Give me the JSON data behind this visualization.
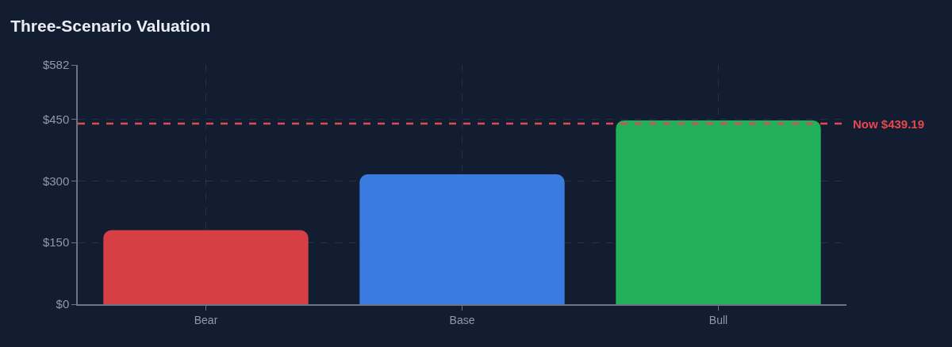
{
  "chart_data": {
    "type": "bar",
    "title": "Three-Scenario Valuation",
    "categories": [
      "Bear",
      "Base",
      "Bull"
    ],
    "values": [
      180,
      316,
      447
    ],
    "colors": [
      "#d64045",
      "#3a7be0",
      "#22b05a"
    ],
    "ylim": [
      0,
      582
    ],
    "yticks": [
      {
        "value": 0,
        "label": "$0"
      },
      {
        "value": 150,
        "label": "$150"
      },
      {
        "value": 300,
        "label": "$300"
      },
      {
        "value": 450,
        "label": "$450"
      },
      {
        "value": 582,
        "label": "$582"
      }
    ],
    "grid": true,
    "ref_lines": [
      {
        "axis": "y",
        "value": 439.19,
        "label": "Now $439.19",
        "color": "#e5484d",
        "line_style": "dashed"
      }
    ]
  }
}
